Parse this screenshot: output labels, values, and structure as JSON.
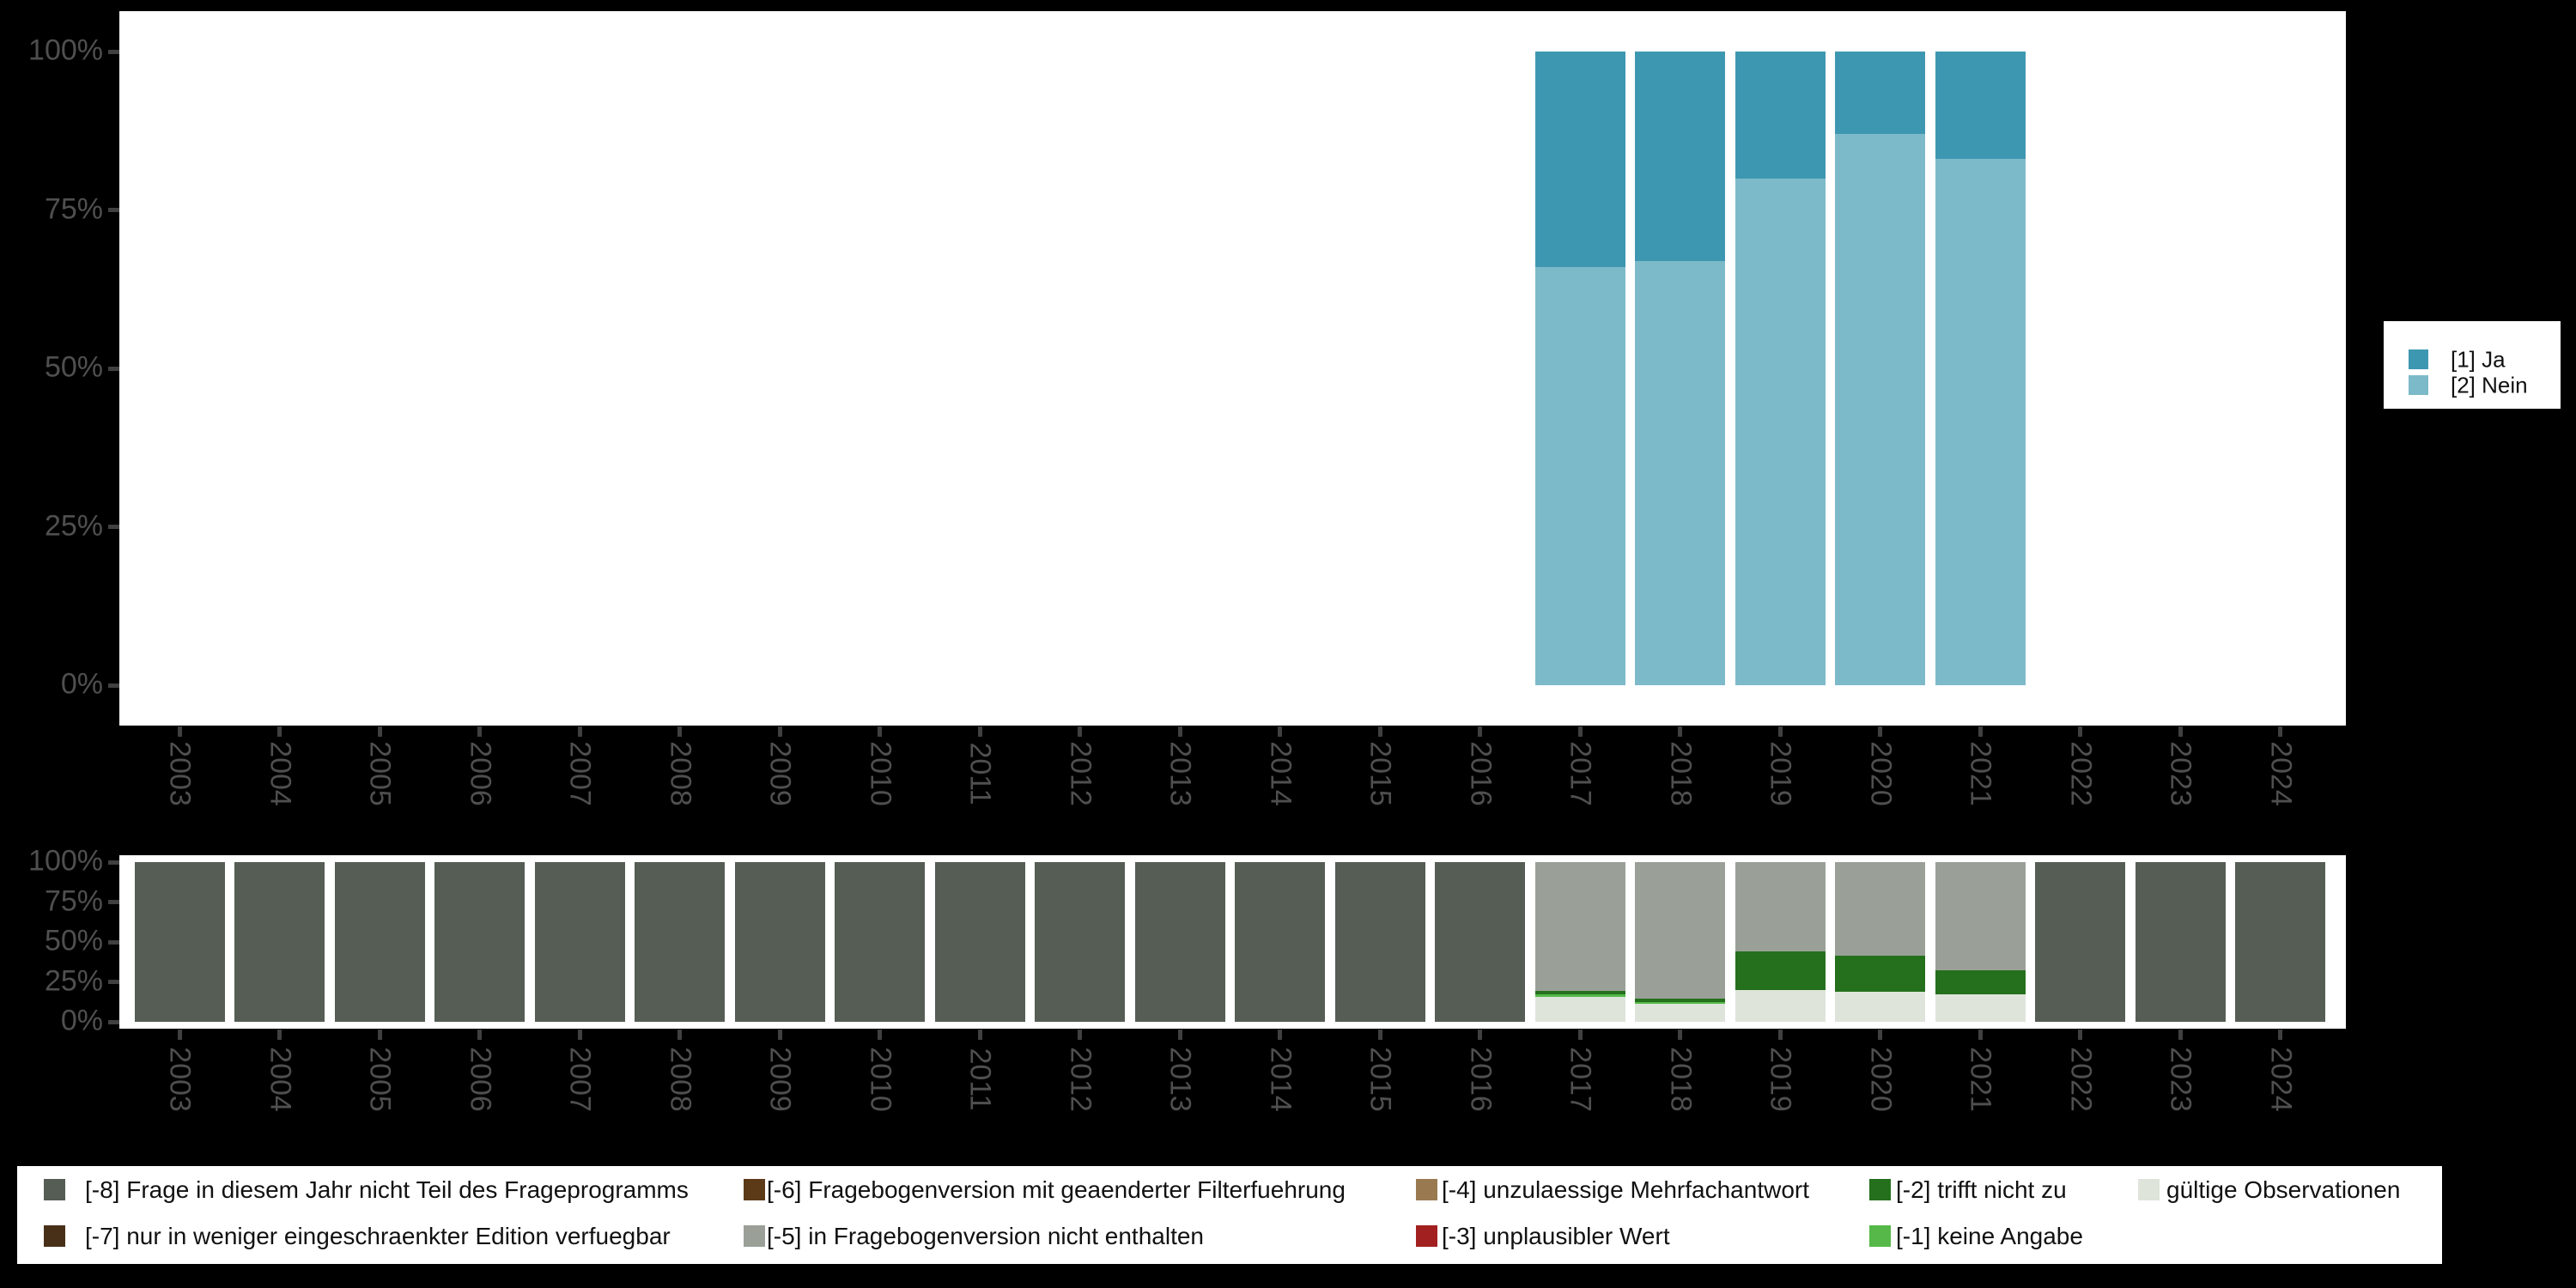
{
  "figure": {
    "background": "#000000",
    "panel_background": "#ffffff",
    "axis_text_color": "#4f4f4f"
  },
  "chart_data": [
    {
      "id": "response-distribution",
      "type": "bar",
      "subtype": "stacked-percent-columns",
      "categories": [
        "2003",
        "2004",
        "2005",
        "2006",
        "2007",
        "2008",
        "2009",
        "2010",
        "2011",
        "2012",
        "2013",
        "2014",
        "2015",
        "2016",
        "2017",
        "2018",
        "2019",
        "2020",
        "2021",
        "2022",
        "2023",
        "2024"
      ],
      "y_ticks": [
        "0%",
        "25%",
        "50%",
        "75%",
        "100%"
      ],
      "ylim": [
        0,
        100
      ],
      "grid": false,
      "legend_position": "right",
      "series": [
        {
          "name": "[1] Ja",
          "color": "#3e97b1",
          "values": [
            null,
            null,
            null,
            null,
            null,
            null,
            null,
            null,
            null,
            null,
            null,
            null,
            null,
            null,
            34,
            33,
            20,
            13,
            17,
            null,
            null,
            null
          ]
        },
        {
          "name": "[2] Nein",
          "color": "#7dbac9",
          "values": [
            null,
            null,
            null,
            null,
            null,
            null,
            null,
            null,
            null,
            null,
            null,
            null,
            null,
            null,
            66,
            67,
            80,
            87,
            83,
            null,
            null,
            null
          ]
        }
      ]
    },
    {
      "id": "missings-distribution",
      "type": "bar",
      "subtype": "stacked-percent-columns",
      "categories": [
        "2003",
        "2004",
        "2005",
        "2006",
        "2007",
        "2008",
        "2009",
        "2010",
        "2011",
        "2012",
        "2013",
        "2014",
        "2015",
        "2016",
        "2017",
        "2018",
        "2019",
        "2020",
        "2021",
        "2022",
        "2023",
        "2024"
      ],
      "y_ticks": [
        "0%",
        "25%",
        "50%",
        "75%",
        "100%"
      ],
      "ylim": [
        0,
        100
      ],
      "grid": false,
      "legend_position": "bottom",
      "series": [
        {
          "name": "[-8] Frage in diesem Jahr nicht Teil des Frageprogramms",
          "color": "#555d55",
          "values": [
            100,
            100,
            100,
            100,
            100,
            100,
            100,
            100,
            100,
            100,
            100,
            100,
            100,
            100,
            0,
            0,
            0,
            0,
            0,
            100,
            100,
            100
          ]
        },
        {
          "name": "[-5] in Fragebogenversion nicht enthalten",
          "color": "#9aa097",
          "values": [
            0,
            0,
            0,
            0,
            0,
            0,
            0,
            0,
            0,
            0,
            0,
            0,
            0,
            0,
            80.6,
            85.5,
            55.9,
            58.6,
            67.7,
            0,
            0,
            0
          ]
        },
        {
          "name": "[-2] trifft nicht zu",
          "color": "#25701c",
          "values": [
            0,
            0,
            0,
            0,
            0,
            0,
            0,
            0,
            0,
            0,
            0,
            0,
            0,
            0,
            2.2,
            1.9,
            24.2,
            22.6,
            15.1,
            0,
            0,
            0
          ]
        },
        {
          "name": "[-1] keine Angabe",
          "color": "#55b849",
          "values": [
            0,
            0,
            0,
            0,
            0,
            0,
            0,
            0,
            0,
            0,
            0,
            0,
            0,
            0,
            1.6,
            1.3,
            0,
            0,
            0,
            0,
            0,
            0
          ]
        },
        {
          "name": "gültige Observationen",
          "color": "#dfe4db",
          "values": [
            0,
            0,
            0,
            0,
            0,
            0,
            0,
            0,
            0,
            0,
            0,
            0,
            0,
            0,
            15.6,
            11.3,
            19.9,
            18.8,
            17.2,
            0,
            0,
            0
          ]
        }
      ]
    }
  ],
  "legend_response": {
    "items": [
      {
        "label": "[1] Ja",
        "color": "#3e97b1"
      },
      {
        "label": "[2] Nein",
        "color": "#7dbac9"
      }
    ]
  },
  "legend_missings": {
    "columns": [
      {
        "items": [
          {
            "label": "[-8] Frage in diesem Jahr nicht Teil des Frageprogramms",
            "color": "#555d55"
          },
          {
            "label": "[-7] nur in weniger eingeschraenkter Edition verfuegbar",
            "color": "#483018"
          }
        ]
      },
      {
        "items": [
          {
            "label": "[-6] Fragebogenversion mit geaenderter Filterfuehrung",
            "color": "#5c3a17"
          },
          {
            "label": "[-5] in Fragebogenversion nicht enthalten",
            "color": "#9aa097"
          }
        ]
      },
      {
        "items": [
          {
            "label": "[-4] unzulaessige Mehrfachantwort",
            "color": "#997a50"
          },
          {
            "label": "[-3] unplausibler Wert",
            "color": "#a32020"
          }
        ]
      },
      {
        "items": [
          {
            "label": "[-2] trifft nicht zu",
            "color": "#25701c"
          },
          {
            "label": "[-1] keine Angabe",
            "color": "#55b849"
          }
        ]
      },
      {
        "items": [
          {
            "label": "gültige Observationen",
            "color": "#dfe4db"
          }
        ]
      }
    ]
  }
}
